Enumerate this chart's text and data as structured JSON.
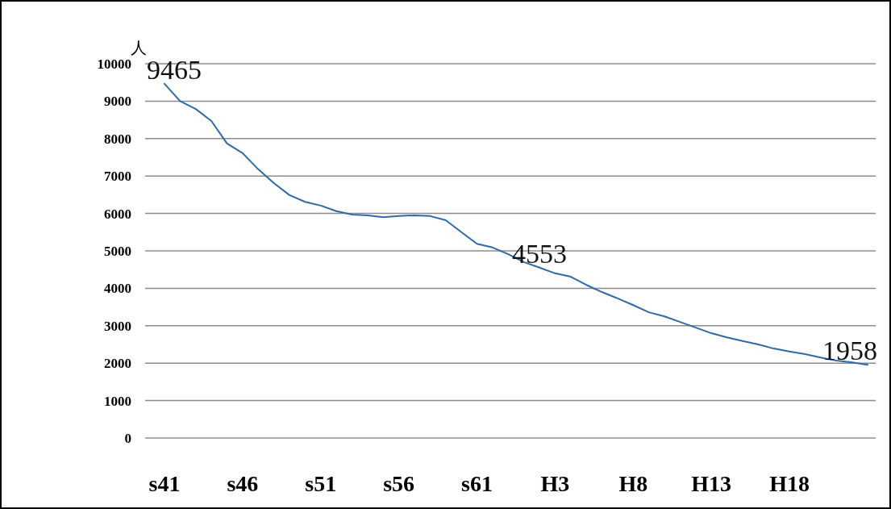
{
  "chart_data": {
    "type": "line",
    "ylabel": "人",
    "categories": [
      "s41",
      null,
      null,
      null,
      null,
      "s46",
      null,
      null,
      null,
      null,
      "s51",
      null,
      null,
      null,
      null,
      "s56",
      null,
      null,
      null,
      null,
      "s61",
      null,
      null,
      null,
      null,
      "H3",
      null,
      null,
      null,
      null,
      "H8",
      null,
      null,
      null,
      null,
      "H13",
      null,
      null,
      null,
      null,
      "H18",
      null,
      null,
      null,
      null,
      null
    ],
    "series": [
      {
        "color": "#2e6aa8",
        "values": [
          9465,
          9000,
          8790,
          8470,
          7870,
          7610,
          7180,
          6810,
          6490,
          6310,
          6210,
          6060,
          5970,
          5950,
          5900,
          5930,
          5950,
          5930,
          5820,
          5500,
          5190,
          5090,
          4910,
          4700,
          4553,
          4400,
          4310,
          4090,
          3900,
          3730,
          3550,
          3360,
          3250,
          3100,
          2950,
          2800,
          2690,
          2590,
          2500,
          2390,
          2310,
          2240,
          2150,
          2070,
          2020,
          1958
        ],
        "value_labels": [
          "9465",
          null,
          null,
          null,
          null,
          null,
          null,
          null,
          null,
          null,
          null,
          null,
          null,
          null,
          null,
          null,
          null,
          null,
          null,
          null,
          null,
          null,
          null,
          null,
          "4553",
          null,
          null,
          null,
          null,
          null,
          null,
          null,
          null,
          null,
          null,
          null,
          null,
          null,
          null,
          null,
          null,
          null,
          null,
          null,
          null,
          "1958"
        ]
      }
    ],
    "ylim": [
      0,
      10000
    ],
    "yticks": [
      0,
      1000,
      2000,
      3000,
      4000,
      5000,
      6000,
      7000,
      8000,
      9000,
      10000
    ],
    "grid": "y",
    "marker": "none",
    "line_style": "solid"
  }
}
